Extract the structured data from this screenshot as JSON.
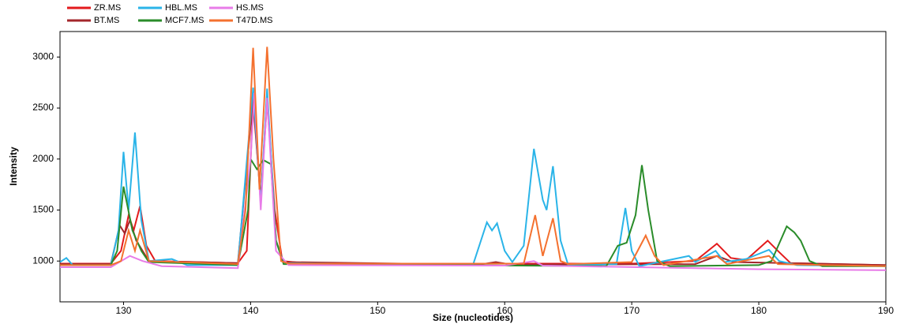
{
  "chart_data": {
    "type": "line",
    "x_label": "Size (nucleotides)",
    "y_label": "Intensity",
    "xlim": [
      125,
      190
    ],
    "ylim": [
      600,
      3250
    ],
    "xticks": [
      130,
      140,
      150,
      160,
      170,
      180,
      190
    ],
    "yticks": [
      1000,
      1500,
      2000,
      2500,
      3000
    ],
    "series": [
      {
        "name": "ZR.MS",
        "color": "#e31a1c",
        "x": [
          125,
          129,
          129.8,
          130.4,
          130.8,
          131.3,
          131.8,
          132.5,
          139,
          139.7,
          140.2,
          140.8,
          141.3,
          141.9,
          142.5,
          145,
          160,
          170,
          175,
          176.7,
          177.8,
          179,
          180.7,
          181.5,
          182.5,
          190
        ],
        "values": [
          975,
          975,
          1100,
          1450,
          1300,
          1540,
          1150,
          1000,
          980,
          1100,
          2560,
          1600,
          2570,
          1500,
          1000,
          970,
          975,
          975,
          1000,
          1170,
          1030,
          1010,
          1200,
          1100,
          980,
          960
        ]
      },
      {
        "name": "BT.MS",
        "color": "#a3262b",
        "x": [
          125,
          129,
          129.7,
          130.1,
          130.5,
          131,
          131.5,
          132,
          139,
          140.2,
          140.8,
          141.3,
          142,
          142.6,
          158,
          159.3,
          160.5,
          175,
          176.7,
          178,
          190
        ],
        "values": [
          970,
          970,
          1350,
          1270,
          1400,
          1200,
          1100,
          1000,
          980,
          2600,
          1600,
          2650,
          1200,
          990,
          965,
          990,
          965,
          970,
          1050,
          990,
          960
        ]
      },
      {
        "name": "HBL.MS",
        "color": "#2ab4e8",
        "x": [
          125,
          125.5,
          126,
          129,
          129.6,
          130,
          130.4,
          130.9,
          131.4,
          132,
          133.8,
          135,
          139,
          140.2,
          140.8,
          141.3,
          142,
          142.6,
          157.5,
          158.6,
          159,
          159.4,
          160,
          160.6,
          161.5,
          162.3,
          163,
          163.3,
          163.8,
          164.4,
          165,
          168.8,
          169.5,
          170,
          170.6,
          174.5,
          175,
          176.6,
          177.3,
          179,
          180.8,
          181.6,
          183,
          190
        ],
        "values": [
          990,
          1030,
          960,
          960,
          1300,
          2070,
          1500,
          2260,
          1400,
          1000,
          1020,
          960,
          960,
          2700,
          1550,
          2690,
          1200,
          980,
          960,
          1380,
          1300,
          1370,
          1100,
          990,
          1150,
          2100,
          1600,
          1500,
          1930,
          1200,
          960,
          970,
          1520,
          1100,
          950,
          1050,
          990,
          1100,
          990,
          1020,
          1110,
          1000,
          960,
          950
        ]
      },
      {
        "name": "MCF7.MS",
        "color": "#2a8c2a",
        "x": [
          125,
          129,
          129.5,
          130,
          130.7,
          131.4,
          132,
          139,
          139.8,
          140,
          140.5,
          141,
          141.6,
          142,
          142.6,
          168,
          168.9,
          169.6,
          170.3,
          170.8,
          171.3,
          172,
          173,
          180,
          181,
          182.2,
          182.8,
          183.3,
          184,
          185,
          190
        ],
        "values": [
          960,
          960,
          1100,
          1730,
          1300,
          1100,
          990,
          960,
          1500,
          2000,
          1900,
          1990,
          1950,
          1200,
          970,
          950,
          1150,
          1180,
          1450,
          1940,
          1500,
          1000,
          950,
          960,
          1000,
          1340,
          1280,
          1200,
          1000,
          950,
          950
        ]
      },
      {
        "name": "HS.MS",
        "color": "#e87ce8",
        "x": [
          125,
          129,
          130.5,
          131.5,
          133,
          139,
          140,
          140.3,
          140.8,
          141.3,
          142,
          143,
          160,
          162.3,
          163,
          175,
          180,
          190
        ],
        "values": [
          940,
          940,
          1050,
          1000,
          950,
          930,
          2000,
          2650,
          1500,
          2600,
          1100,
          960,
          955,
          1000,
          955,
          930,
          920,
          910
        ]
      },
      {
        "name": "T47D.MS",
        "color": "#f4712f",
        "x": [
          125,
          129,
          129.8,
          130.4,
          130.9,
          131.3,
          132,
          139,
          139.6,
          140.2,
          140.7,
          141.3,
          141.8,
          142.4,
          143,
          161.5,
          162.4,
          163,
          163.8,
          164.4,
          165,
          170,
          171.1,
          171.8,
          172.5,
          176.7,
          177.5,
          180.8,
          181.5,
          190
        ],
        "values": [
          960,
          960,
          1000,
          1300,
          1100,
          1300,
          1000,
          970,
          1500,
          3090,
          1700,
          3100,
          2000,
          1000,
          975,
          975,
          1450,
          1050,
          1420,
          1000,
          970,
          990,
          1250,
          1050,
          960,
          1050,
          970,
          1050,
          970,
          950
        ]
      }
    ]
  }
}
